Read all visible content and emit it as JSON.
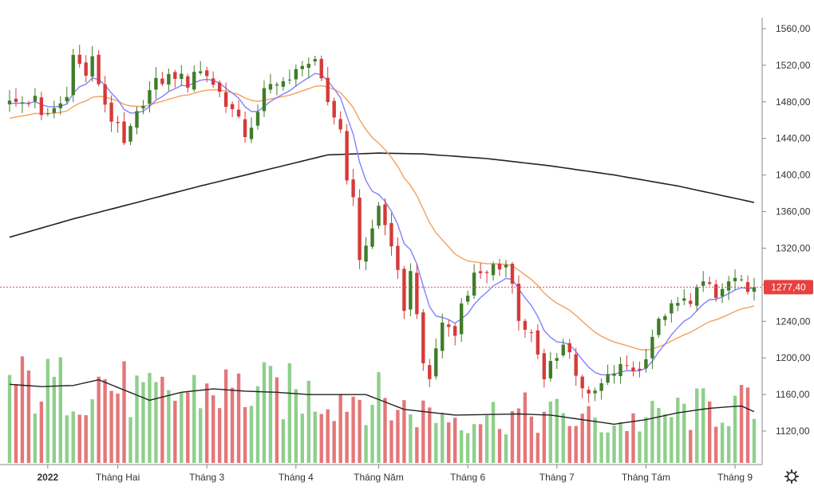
{
  "chart_data": {
    "type": "candlestick",
    "title": "",
    "price_axis": {
      "ylim": [
        1100,
        1575
      ],
      "ticks": [
        1120,
        1160,
        1200,
        1240,
        1280,
        1320,
        1360,
        1400,
        1440,
        1480,
        1520,
        1560
      ],
      "tick_labels": [
        "1120,00",
        "1160,00",
        "1200,00",
        "1240,00",
        "1280,00",
        "1320,00",
        "1360,00",
        "1400,00",
        "1440,00",
        "1480,00",
        "1520,00",
        "1560,00"
      ]
    },
    "time_axis": {
      "labels": [
        {
          "text": "2022",
          "bar": 6,
          "bold": true
        },
        {
          "text": "Tháng Hai",
          "bar": 17,
          "bold": false
        },
        {
          "text": "Tháng 3",
          "bar": 31,
          "bold": false
        },
        {
          "text": "Tháng 4",
          "bar": 45,
          "bold": false
        },
        {
          "text": "Tháng Năm",
          "bar": 58,
          "bold": false
        },
        {
          "text": "Tháng 6",
          "bar": 72,
          "bold": false
        },
        {
          "text": "Tháng 7",
          "bar": 86,
          "bold": false
        },
        {
          "text": "Tháng Tám",
          "bar": 100,
          "bold": false
        },
        {
          "text": "Tháng 9",
          "bar": 114,
          "bold": false
        }
      ]
    },
    "last_price": 1277.4,
    "last_price_label": "1277,40",
    "colors": {
      "up": "#3f7d2a",
      "down": "#d63a3a",
      "vol_up": "#8fcf8c",
      "vol_down": "#e47779",
      "ma_blue": "#8080ff",
      "ma_orange": "#f5a05a",
      "ma_black": "#222222",
      "vol_ma": "#222222",
      "price_line": "#e05050",
      "grid": "#cccccc"
    },
    "keypoints": [
      [
        0,
        1478
      ],
      [
        4,
        1482
      ],
      [
        5,
        1462
      ],
      [
        8,
        1478
      ],
      [
        9,
        1492
      ],
      [
        10,
        1530
      ],
      [
        12,
        1510
      ],
      [
        13,
        1525
      ],
      [
        15,
        1478
      ],
      [
        16,
        1462
      ],
      [
        17,
        1450
      ],
      [
        18,
        1432
      ],
      [
        20,
        1465
      ],
      [
        21,
        1482
      ],
      [
        23,
        1500
      ],
      [
        26,
        1510
      ],
      [
        28,
        1500
      ],
      [
        29,
        1515
      ],
      [
        31,
        1510
      ],
      [
        33,
        1490
      ],
      [
        35,
        1470
      ],
      [
        37,
        1445
      ],
      [
        39,
        1465
      ],
      [
        40,
        1490
      ],
      [
        42,
        1505
      ],
      [
        44,
        1500
      ],
      [
        46,
        1525
      ],
      [
        48,
        1520
      ],
      [
        50,
        1480
      ],
      [
        52,
        1450
      ],
      [
        53,
        1400
      ],
      [
        54,
        1370
      ],
      [
        55,
        1310
      ],
      [
        57,
        1340
      ],
      [
        58,
        1365
      ],
      [
        60,
        1325
      ],
      [
        61,
        1290
      ],
      [
        62,
        1245
      ],
      [
        63,
        1300
      ],
      [
        64,
        1245
      ],
      [
        65,
        1200
      ],
      [
        66,
        1170
      ],
      [
        67,
        1210
      ],
      [
        68,
        1240
      ],
      [
        70,
        1225
      ],
      [
        71,
        1260
      ],
      [
        73,
        1290
      ],
      [
        74,
        1295
      ],
      [
        76,
        1298
      ],
      [
        77,
        1290
      ],
      [
        78,
        1305
      ],
      [
        79,
        1287
      ],
      [
        80,
        1240
      ],
      [
        82,
        1225
      ],
      [
        83,
        1200
      ],
      [
        84,
        1175
      ],
      [
        85,
        1195
      ],
      [
        87,
        1215
      ],
      [
        88,
        1205
      ],
      [
        89,
        1185
      ],
      [
        90,
        1170
      ],
      [
        91,
        1155
      ],
      [
        93,
        1170
      ],
      [
        95,
        1185
      ],
      [
        97,
        1192
      ],
      [
        99,
        1185
      ],
      [
        100,
        1205
      ],
      [
        101,
        1225
      ],
      [
        103,
        1250
      ],
      [
        105,
        1258
      ],
      [
        107,
        1265
      ],
      [
        108,
        1275
      ],
      [
        110,
        1280
      ],
      [
        111,
        1265
      ],
      [
        113,
        1282
      ],
      [
        115,
        1280
      ],
      [
        117,
        1277.4
      ]
    ],
    "ma_fast_period": 8,
    "ma_slow_period": 24,
    "long_ma": {
      "points": [
        [
          0,
          1332
        ],
        [
          10,
          1352
        ],
        [
          20,
          1370
        ],
        [
          30,
          1388
        ],
        [
          40,
          1405
        ],
        [
          50,
          1422
        ],
        [
          58,
          1424
        ],
        [
          65,
          1423
        ],
        [
          75,
          1418
        ],
        [
          85,
          1410
        ],
        [
          95,
          1400
        ],
        [
          105,
          1388
        ],
        [
          117,
          1370
        ]
      ]
    },
    "volume": {
      "max": 100,
      "vol_ma": [
        [
          0,
          69
        ],
        [
          5,
          67
        ],
        [
          10,
          68
        ],
        [
          14,
          73
        ],
        [
          18,
          64
        ],
        [
          22,
          55
        ],
        [
          27,
          62
        ],
        [
          32,
          65
        ],
        [
          37,
          63
        ],
        [
          42,
          62
        ],
        [
          47,
          60
        ],
        [
          52,
          60
        ],
        [
          56,
          60
        ],
        [
          62,
          47
        ],
        [
          70,
          42
        ],
        [
          80,
          43
        ],
        [
          85,
          42
        ],
        [
          90,
          38
        ],
        [
          95,
          34
        ],
        [
          100,
          38
        ],
        [
          105,
          44
        ],
        [
          110,
          48
        ],
        [
          115,
          50
        ],
        [
          117,
          45
        ]
      ]
    },
    "n_bars": 118
  }
}
